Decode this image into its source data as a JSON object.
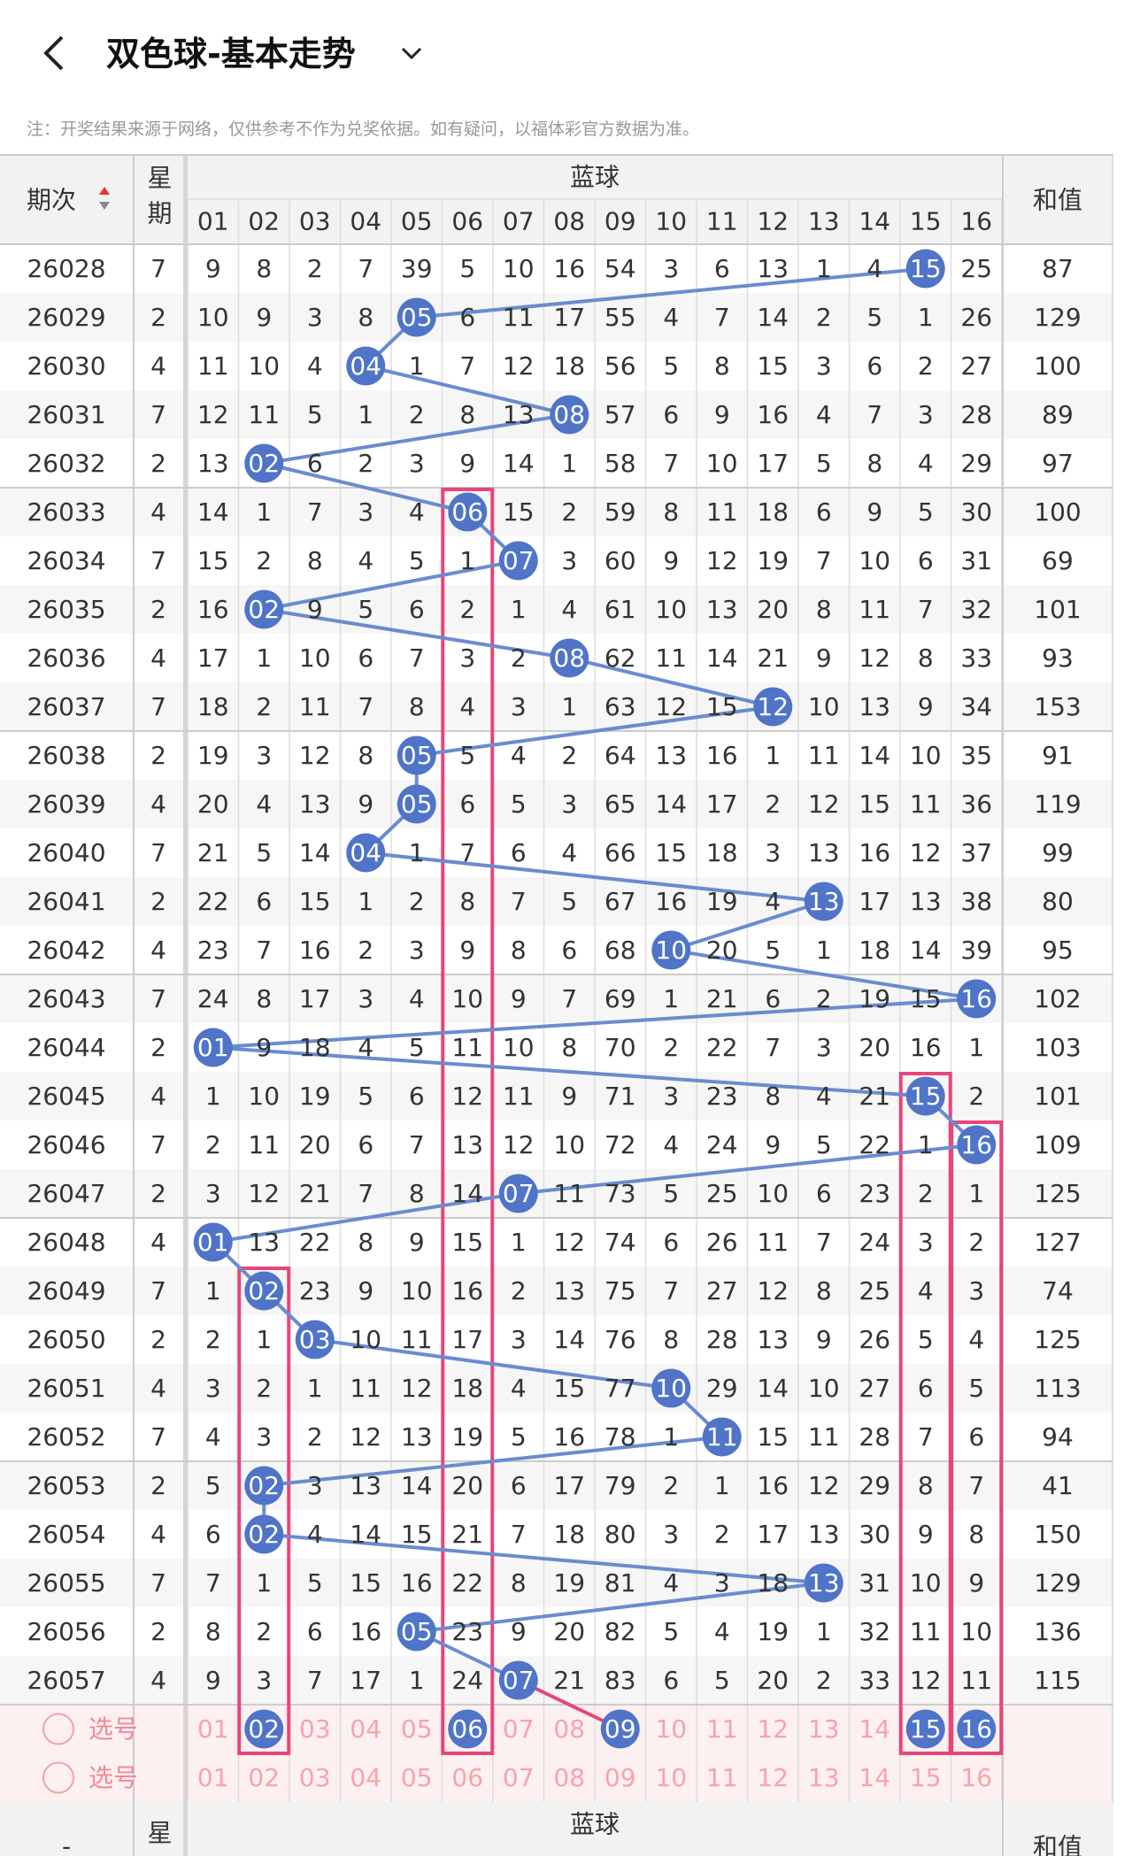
{
  "header": {
    "title": "双色球-基本走势"
  },
  "note": "注：开奖结果来源于网络，仅供参考不作为兑奖依据。如有疑问，以福体彩官方数据为准。",
  "table": {
    "columns": {
      "period": "期次",
      "week": "星期",
      "blue": "蓝球",
      "sum": "和值",
      "numbers": [
        "01",
        "02",
        "03",
        "04",
        "05",
        "06",
        "07",
        "08",
        "09",
        "10",
        "11",
        "12",
        "13",
        "14",
        "15",
        "16"
      ]
    },
    "rows": [
      {
        "period": 26028,
        "week": 7,
        "cells": [
          9,
          8,
          2,
          7,
          39,
          5,
          10,
          16,
          54,
          3,
          6,
          13,
          1,
          4,
          "15",
          25
        ],
        "sum": 87
      },
      {
        "period": 26029,
        "week": 2,
        "cells": [
          10,
          9,
          3,
          8,
          "05",
          6,
          11,
          17,
          55,
          4,
          7,
          14,
          2,
          5,
          1,
          26
        ],
        "sum": 129
      },
      {
        "period": 26030,
        "week": 4,
        "cells": [
          11,
          10,
          4,
          "04",
          1,
          7,
          12,
          18,
          56,
          5,
          8,
          15,
          3,
          6,
          2,
          27
        ],
        "sum": 100
      },
      {
        "period": 26031,
        "week": 7,
        "cells": [
          12,
          11,
          5,
          1,
          2,
          8,
          13,
          "08",
          57,
          6,
          9,
          16,
          4,
          7,
          3,
          28
        ],
        "sum": 89
      },
      {
        "period": 26032,
        "week": 2,
        "cells": [
          13,
          "02",
          6,
          2,
          3,
          9,
          14,
          1,
          58,
          7,
          10,
          17,
          5,
          8,
          4,
          29
        ],
        "sum": 97
      },
      {
        "period": 26033,
        "week": 4,
        "cells": [
          14,
          1,
          7,
          3,
          4,
          "06",
          15,
          2,
          59,
          8,
          11,
          18,
          6,
          9,
          5,
          30
        ],
        "sum": 100
      },
      {
        "period": 26034,
        "week": 7,
        "cells": [
          15,
          2,
          8,
          4,
          5,
          1,
          "07",
          3,
          60,
          9,
          12,
          19,
          7,
          10,
          6,
          31
        ],
        "sum": 69
      },
      {
        "period": 26035,
        "week": 2,
        "cells": [
          16,
          "02",
          9,
          5,
          6,
          2,
          1,
          4,
          61,
          10,
          13,
          20,
          8,
          11,
          7,
          32
        ],
        "sum": 101
      },
      {
        "period": 26036,
        "week": 4,
        "cells": [
          17,
          1,
          10,
          6,
          7,
          3,
          2,
          "08",
          62,
          11,
          14,
          21,
          9,
          12,
          8,
          33
        ],
        "sum": 93
      },
      {
        "period": 26037,
        "week": 7,
        "cells": [
          18,
          2,
          11,
          7,
          8,
          4,
          3,
          1,
          63,
          12,
          15,
          "12",
          10,
          13,
          9,
          34
        ],
        "sum": 153
      },
      {
        "period": 26038,
        "week": 2,
        "cells": [
          19,
          3,
          12,
          8,
          "05",
          5,
          4,
          2,
          64,
          13,
          16,
          1,
          11,
          14,
          10,
          35
        ],
        "sum": 91
      },
      {
        "period": 26039,
        "week": 4,
        "cells": [
          20,
          4,
          13,
          9,
          "05",
          6,
          5,
          3,
          65,
          14,
          17,
          2,
          12,
          15,
          11,
          36
        ],
        "sum": 119
      },
      {
        "period": 26040,
        "week": 7,
        "cells": [
          21,
          5,
          14,
          "04",
          1,
          7,
          6,
          4,
          66,
          15,
          18,
          3,
          13,
          16,
          12,
          37
        ],
        "sum": 99
      },
      {
        "period": 26041,
        "week": 2,
        "cells": [
          22,
          6,
          15,
          1,
          2,
          8,
          7,
          5,
          67,
          16,
          19,
          4,
          "13",
          17,
          13,
          38
        ],
        "sum": 80
      },
      {
        "period": 26042,
        "week": 4,
        "cells": [
          23,
          7,
          16,
          2,
          3,
          9,
          8,
          6,
          68,
          "10",
          20,
          5,
          1,
          18,
          14,
          39
        ],
        "sum": 95
      },
      {
        "period": 26043,
        "week": 7,
        "cells": [
          24,
          8,
          17,
          3,
          4,
          10,
          9,
          7,
          69,
          1,
          21,
          6,
          2,
          19,
          15,
          "16"
        ],
        "sum": 102
      },
      {
        "period": 26044,
        "week": 2,
        "cells": [
          "01",
          9,
          18,
          4,
          5,
          11,
          10,
          8,
          70,
          2,
          22,
          7,
          3,
          20,
          16,
          1
        ],
        "sum": 103
      },
      {
        "period": 26045,
        "week": 4,
        "cells": [
          1,
          10,
          19,
          5,
          6,
          12,
          11,
          9,
          71,
          3,
          23,
          8,
          4,
          21,
          "15",
          2
        ],
        "sum": 101
      },
      {
        "period": 26046,
        "week": 7,
        "cells": [
          2,
          11,
          20,
          6,
          7,
          13,
          12,
          10,
          72,
          4,
          24,
          9,
          5,
          22,
          1,
          "16"
        ],
        "sum": 109
      },
      {
        "period": 26047,
        "week": 2,
        "cells": [
          3,
          12,
          21,
          7,
          8,
          14,
          "07",
          11,
          73,
          5,
          25,
          10,
          6,
          23,
          2,
          1
        ],
        "sum": 125
      },
      {
        "period": 26048,
        "week": 4,
        "cells": [
          "01",
          13,
          22,
          8,
          9,
          15,
          1,
          12,
          74,
          6,
          26,
          11,
          7,
          24,
          3,
          2
        ],
        "sum": 127
      },
      {
        "period": 26049,
        "week": 7,
        "cells": [
          1,
          "02",
          23,
          9,
          10,
          16,
          2,
          13,
          75,
          7,
          27,
          12,
          8,
          25,
          4,
          3
        ],
        "sum": 74
      },
      {
        "period": 26050,
        "week": 2,
        "cells": [
          2,
          1,
          "03",
          10,
          11,
          17,
          3,
          14,
          76,
          8,
          28,
          13,
          9,
          26,
          5,
          4
        ],
        "sum": 125
      },
      {
        "period": 26051,
        "week": 4,
        "cells": [
          3,
          2,
          1,
          11,
          12,
          18,
          4,
          15,
          77,
          "10",
          29,
          14,
          10,
          27,
          6,
          5
        ],
        "sum": 113
      },
      {
        "period": 26052,
        "week": 7,
        "cells": [
          4,
          3,
          2,
          12,
          13,
          19,
          5,
          16,
          78,
          1,
          "11",
          15,
          11,
          28,
          7,
          6
        ],
        "sum": 94
      },
      {
        "period": 26053,
        "week": 2,
        "cells": [
          5,
          "02",
          3,
          13,
          14,
          20,
          6,
          17,
          79,
          2,
          1,
          16,
          12,
          29,
          8,
          7
        ],
        "sum": 41
      },
      {
        "period": 26054,
        "week": 4,
        "cells": [
          6,
          "02",
          4,
          14,
          15,
          21,
          7,
          18,
          80,
          3,
          2,
          17,
          13,
          30,
          9,
          8
        ],
        "sum": 150
      },
      {
        "period": 26055,
        "week": 7,
        "cells": [
          7,
          1,
          5,
          15,
          16,
          22,
          8,
          19,
          81,
          4,
          3,
          18,
          "13",
          31,
          10,
          9
        ],
        "sum": 129
      },
      {
        "period": 26056,
        "week": 2,
        "cells": [
          8,
          2,
          6,
          16,
          "05",
          23,
          9,
          20,
          82,
          5,
          4,
          19,
          1,
          32,
          11,
          10
        ],
        "sum": 136
      },
      {
        "period": 26057,
        "week": 4,
        "cells": [
          9,
          3,
          7,
          17,
          1,
          24,
          "07",
          21,
          83,
          6,
          5,
          20,
          2,
          33,
          12,
          11
        ],
        "sum": 115
      }
    ],
    "pick_rows": [
      {
        "label": "选号",
        "cells": [
          "01",
          {
            "text": "02",
            "picked": true
          },
          "03",
          "04",
          "05",
          {
            "text": "06",
            "picked": true
          },
          "07",
          "08",
          {
            "text": "09",
            "picked": true
          },
          "10",
          "11",
          "12",
          "13",
          "14",
          {
            "text": "15",
            "picked": true
          },
          {
            "text": "16",
            "picked": true
          }
        ]
      },
      {
        "label": "选号",
        "cells": [
          "01",
          "02",
          "03",
          "04",
          "05",
          "06",
          "07",
          "08",
          "09",
          "10",
          "11",
          "12",
          "13",
          "14",
          "15",
          "16"
        ]
      }
    ]
  },
  "footer_header": {
    "period": "-",
    "week": "星期",
    "blue": "蓝球",
    "sum": "和值"
  }
}
